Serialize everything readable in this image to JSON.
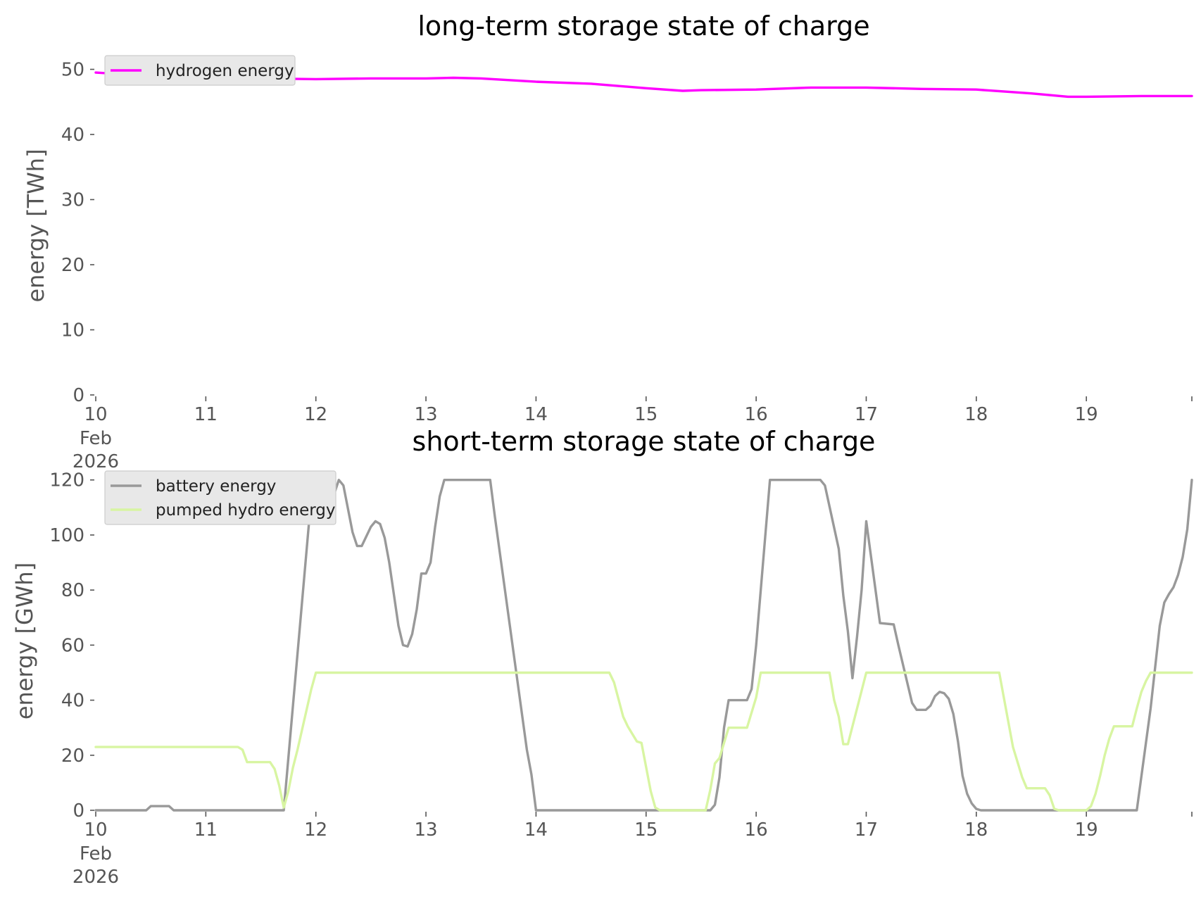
{
  "chart_data": [
    {
      "type": "line",
      "title": "long-term storage state of charge",
      "ylabel": "energy [TWh]",
      "xlabel": "",
      "x_ticks": [
        "10",
        "11",
        "12",
        "13",
        "14",
        "15",
        "16",
        "17",
        "18",
        "19"
      ],
      "x_tick_sublabels": [
        "Feb",
        "2026"
      ],
      "xlim": [
        "2026-02-10",
        "2026-02-19 23:00"
      ],
      "ylim": [
        0,
        52
      ],
      "y_ticks": [
        "0",
        "10",
        "20",
        "30",
        "40",
        "50"
      ],
      "grid": false,
      "legend_position": "upper left",
      "series": [
        {
          "name": "hydrogen energy",
          "color": "#ff00ff",
          "points": [
            [
              "2026-02-10 00:00",
              49.5
            ],
            [
              "2026-02-10 12:00",
              49.0
            ],
            [
              "2026-02-11 00:00",
              48.8
            ],
            [
              "2026-02-11 12:00",
              48.6
            ],
            [
              "2026-02-12 00:00",
              48.5
            ],
            [
              "2026-02-12 12:00",
              48.6
            ],
            [
              "2026-02-13 00:00",
              48.6
            ],
            [
              "2026-02-13 06:00",
              48.7
            ],
            [
              "2026-02-13 12:00",
              48.6
            ],
            [
              "2026-02-14 00:00",
              48.1
            ],
            [
              "2026-02-14 12:00",
              47.8
            ],
            [
              "2026-02-15 00:00",
              47.1
            ],
            [
              "2026-02-15 08:00",
              46.7
            ],
            [
              "2026-02-15 12:00",
              46.8
            ],
            [
              "2026-02-16 00:00",
              46.9
            ],
            [
              "2026-02-16 12:00",
              47.2
            ],
            [
              "2026-02-17 00:00",
              47.2
            ],
            [
              "2026-02-17 12:00",
              47.0
            ],
            [
              "2026-02-18 00:00",
              46.9
            ],
            [
              "2026-02-18 12:00",
              46.3
            ],
            [
              "2026-02-18 20:00",
              45.8
            ],
            [
              "2026-02-19 00:00",
              45.8
            ],
            [
              "2026-02-19 12:00",
              45.9
            ],
            [
              "2026-02-19 23:00",
              45.9
            ]
          ]
        }
      ]
    },
    {
      "type": "line",
      "title": "short-term storage state of charge",
      "ylabel": "energy [GWh]",
      "xlabel": "",
      "x_ticks": [
        "10",
        "11",
        "12",
        "13",
        "14",
        "15",
        "16",
        "17",
        "18",
        "19"
      ],
      "x_tick_sublabels": [
        "Feb",
        "2026"
      ],
      "xlim": [
        "2026-02-10",
        "2026-02-19 23:00"
      ],
      "ylim": [
        0,
        123
      ],
      "y_ticks": [
        "0",
        "20",
        "40",
        "60",
        "80",
        "100",
        "120"
      ],
      "grid": false,
      "legend_position": "upper left",
      "series": [
        {
          "name": "battery energy",
          "color": "#999999",
          "points": [
            [
              "2026-02-10 00:00",
              0
            ],
            [
              "2026-02-10 11:00",
              0
            ],
            [
              "2026-02-10 12:00",
              1.5
            ],
            [
              "2026-02-10 16:00",
              1.5
            ],
            [
              "2026-02-10 17:00",
              0
            ],
            [
              "2026-02-11 17:00",
              0
            ],
            [
              "2026-02-11 23:00",
              114
            ],
            [
              "2026-02-12 01:00",
              114
            ],
            [
              "2026-02-12 04:00",
              115
            ],
            [
              "2026-02-12 05:00",
              120
            ],
            [
              "2026-02-12 06:00",
              118
            ],
            [
              "2026-02-12 08:00",
              101
            ],
            [
              "2026-02-12 09:00",
              96
            ],
            [
              "2026-02-12 10:00",
              96
            ],
            [
              "2026-02-12 12:00",
              103
            ],
            [
              "2026-02-12 13:00",
              105
            ],
            [
              "2026-02-12 14:00",
              104
            ],
            [
              "2026-02-12 15:00",
              99
            ],
            [
              "2026-02-12 16:00",
              90
            ],
            [
              "2026-02-12 18:00",
              67
            ],
            [
              "2026-02-12 19:00",
              60
            ],
            [
              "2026-02-12 20:00",
              59.5
            ],
            [
              "2026-02-12 21:00",
              64
            ],
            [
              "2026-02-12 22:00",
              73
            ],
            [
              "2026-02-12 23:00",
              86
            ],
            [
              "2026-02-13 00:00",
              86
            ],
            [
              "2026-02-13 01:00",
              90
            ],
            [
              "2026-02-13 02:00",
              103
            ],
            [
              "2026-02-13 03:00",
              114
            ],
            [
              "2026-02-13 04:00",
              120
            ],
            [
              "2026-02-13 14:00",
              120
            ],
            [
              "2026-02-13 15:00",
              107
            ],
            [
              "2026-02-13 22:00",
              22
            ],
            [
              "2026-02-13 23:00",
              13
            ],
            [
              "2026-02-14 00:00",
              0
            ],
            [
              "2026-02-15 14:00",
              0
            ],
            [
              "2026-02-15 15:00",
              2
            ],
            [
              "2026-02-15 16:00",
              12
            ],
            [
              "2026-02-15 17:00",
              30
            ],
            [
              "2026-02-15 18:00",
              40
            ],
            [
              "2026-02-15 22:00",
              40
            ],
            [
              "2026-02-15 23:00",
              44
            ],
            [
              "2026-02-16 00:00",
              60
            ],
            [
              "2026-02-16 03:00",
              120
            ],
            [
              "2026-02-16 14:00",
              120
            ],
            [
              "2026-02-16 15:00",
              118
            ],
            [
              "2026-02-16 18:00",
              95
            ],
            [
              "2026-02-16 19:00",
              78
            ],
            [
              "2026-02-16 20:00",
              65
            ],
            [
              "2026-02-16 21:00",
              48
            ],
            [
              "2026-02-16 22:00",
              63
            ],
            [
              "2026-02-16 23:00",
              80
            ],
            [
              "2026-02-17 00:00",
              105
            ],
            [
              "2026-02-17 03:00",
              68
            ],
            [
              "2026-02-17 06:00",
              67.5
            ],
            [
              "2026-02-17 07:00",
              60
            ],
            [
              "2026-02-17 10:00",
              39
            ],
            [
              "2026-02-17 11:00",
              36.5
            ],
            [
              "2026-02-17 13:00",
              36.5
            ],
            [
              "2026-02-17 14:00",
              38
            ],
            [
              "2026-02-17 15:00",
              41.5
            ],
            [
              "2026-02-17 16:00",
              43
            ],
            [
              "2026-02-17 17:00",
              42.5
            ],
            [
              "2026-02-17 18:00",
              40.5
            ],
            [
              "2026-02-17 19:00",
              35
            ],
            [
              "2026-02-17 20:00",
              25
            ],
            [
              "2026-02-17 21:00",
              12.5
            ],
            [
              "2026-02-17 22:00",
              6
            ],
            [
              "2026-02-17 23:00",
              2.5
            ],
            [
              "2026-02-18 00:00",
              0.5
            ],
            [
              "2026-02-18 01:00",
              0
            ],
            [
              "2026-02-19 11:00",
              0
            ],
            [
              "2026-02-19 14:00",
              37
            ],
            [
              "2026-02-19 16:00",
              67
            ],
            [
              "2026-02-19 17:00",
              75.5
            ],
            [
              "2026-02-19 18:00",
              78.5
            ],
            [
              "2026-02-19 19:00",
              81
            ],
            [
              "2026-02-19 20:00",
              85.5
            ],
            [
              "2026-02-19 21:00",
              92
            ],
            [
              "2026-02-19 22:00",
              102
            ],
            [
              "2026-02-19 23:00",
              120
            ]
          ]
        },
        {
          "name": "pumped hydro energy",
          "color": "#d8f5a2",
          "points": [
            [
              "2026-02-10 00:00",
              23
            ],
            [
              "2026-02-11 07:00",
              23
            ],
            [
              "2026-02-11 08:00",
              22
            ],
            [
              "2026-02-11 09:00",
              17.5
            ],
            [
              "2026-02-11 14:00",
              17.5
            ],
            [
              "2026-02-11 15:00",
              15
            ],
            [
              "2026-02-11 16:00",
              9
            ],
            [
              "2026-02-11 17:00",
              1
            ],
            [
              "2026-02-11 18:00",
              7
            ],
            [
              "2026-02-11 19:00",
              15.5
            ],
            [
              "2026-02-11 20:00",
              22
            ],
            [
              "2026-02-11 23:00",
              44
            ],
            [
              "2026-02-12 00:00",
              50
            ],
            [
              "2026-02-14 16:00",
              50
            ],
            [
              "2026-02-14 17:00",
              46.5
            ],
            [
              "2026-02-14 19:00",
              34
            ],
            [
              "2026-02-14 20:00",
              30.5
            ],
            [
              "2026-02-14 22:00",
              25
            ],
            [
              "2026-02-14 23:00",
              24.5
            ],
            [
              "2026-02-15 01:00",
              7
            ],
            [
              "2026-02-15 02:00",
              1
            ],
            [
              "2026-02-15 03:00",
              0
            ],
            [
              "2026-02-15 13:00",
              0
            ],
            [
              "2026-02-15 14:00",
              7.5
            ],
            [
              "2026-02-15 15:00",
              17
            ],
            [
              "2026-02-15 16:00",
              19
            ],
            [
              "2026-02-15 18:00",
              30
            ],
            [
              "2026-02-15 22:00",
              30
            ],
            [
              "2026-02-15 23:00",
              35.5
            ],
            [
              "2026-02-16 00:00",
              41
            ],
            [
              "2026-02-16 01:00",
              50
            ],
            [
              "2026-02-16 16:00",
              50
            ],
            [
              "2026-02-16 17:00",
              40
            ],
            [
              "2026-02-16 18:00",
              34
            ],
            [
              "2026-02-16 19:00",
              24
            ],
            [
              "2026-02-16 20:00",
              24
            ],
            [
              "2026-02-17 00:00",
              50
            ],
            [
              "2026-02-18 05:00",
              50
            ],
            [
              "2026-02-18 08:00",
              23
            ],
            [
              "2026-02-18 10:00",
              12
            ],
            [
              "2026-02-18 11:00",
              8
            ],
            [
              "2026-02-18 15:00",
              8
            ],
            [
              "2026-02-18 16:00",
              5.5
            ],
            [
              "2026-02-18 17:00",
              0.5
            ],
            [
              "2026-02-18 18:00",
              0
            ],
            [
              "2026-02-19 00:00",
              0
            ],
            [
              "2026-02-19 01:00",
              1.5
            ],
            [
              "2026-02-19 02:00",
              6
            ],
            [
              "2026-02-19 03:00",
              12.5
            ],
            [
              "2026-02-19 04:00",
              20
            ],
            [
              "2026-02-19 05:00",
              26
            ],
            [
              "2026-02-19 06:00",
              30.5
            ],
            [
              "2026-02-19 10:00",
              30.5
            ],
            [
              "2026-02-19 11:00",
              37
            ],
            [
              "2026-02-19 12:00",
              43
            ],
            [
              "2026-02-19 13:00",
              47
            ],
            [
              "2026-02-19 14:00",
              50
            ],
            [
              "2026-02-19 23:00",
              50
            ]
          ]
        }
      ]
    }
  ]
}
